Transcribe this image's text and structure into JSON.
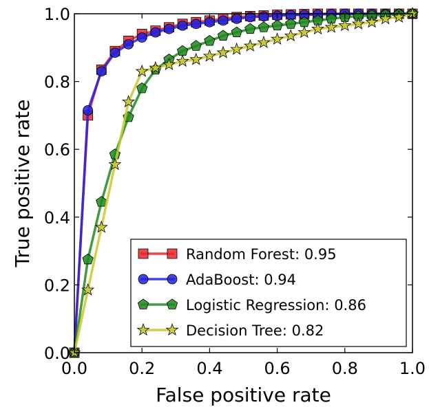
{
  "chart_data": {
    "type": "line",
    "title": "",
    "xlabel": "False positive rate",
    "ylabel": "True positive rate",
    "xlim": [
      0.0,
      1.0
    ],
    "ylim": [
      0.0,
      1.0
    ],
    "xticks": [
      "0.0",
      "0.2",
      "0.4",
      "0.6",
      "0.8",
      "1.0"
    ],
    "yticks": [
      "0.0",
      "0.2",
      "0.4",
      "0.6",
      "0.8",
      "1.0"
    ],
    "grid": false,
    "legend_position": "lower-right",
    "series": [
      {
        "name": "Random Forest: 0.95",
        "color": "#e8262b",
        "marker": "square",
        "x": [
          0.0,
          0.04,
          0.08,
          0.12,
          0.16,
          0.2,
          0.24,
          0.28,
          0.32,
          0.36,
          0.4,
          0.44,
          0.48,
          0.52,
          0.56,
          0.6,
          0.64,
          0.68,
          0.72,
          0.76,
          0.8,
          0.84,
          0.88,
          0.92,
          0.96,
          1.0
        ],
        "y": [
          0.0,
          0.7,
          0.835,
          0.89,
          0.92,
          0.94,
          0.95,
          0.96,
          0.97,
          0.975,
          0.98,
          0.985,
          0.99,
          0.993,
          0.995,
          0.997,
          0.998,
          0.999,
          1.0,
          1.0,
          1.0,
          1.0,
          1.0,
          1.0,
          1.0,
          1.0
        ]
      },
      {
        "name": "AdaBoost: 0.94",
        "color": "#2323e0",
        "marker": "circle",
        "x": [
          0.0,
          0.04,
          0.08,
          0.12,
          0.16,
          0.2,
          0.24,
          0.28,
          0.32,
          0.36,
          0.4,
          0.44,
          0.48,
          0.52,
          0.56,
          0.6,
          0.64,
          0.68,
          0.72,
          0.76,
          0.8,
          0.84,
          0.88,
          0.92,
          0.96,
          1.0
        ],
        "y": [
          0.0,
          0.715,
          0.83,
          0.885,
          0.91,
          0.93,
          0.945,
          0.955,
          0.965,
          0.97,
          0.975,
          0.98,
          0.985,
          0.99,
          0.992,
          0.994,
          0.996,
          0.997,
          0.998,
          0.999,
          1.0,
          1.0,
          1.0,
          1.0,
          1.0,
          1.0
        ]
      },
      {
        "name": "Logistic Regression: 0.86",
        "color": "#1e8a1e",
        "marker": "pentagon",
        "x": [
          0.0,
          0.04,
          0.08,
          0.12,
          0.16,
          0.2,
          0.24,
          0.28,
          0.32,
          0.36,
          0.4,
          0.44,
          0.48,
          0.52,
          0.56,
          0.6,
          0.64,
          0.68,
          0.72,
          0.76,
          0.8,
          0.84,
          0.88,
          0.92,
          0.96,
          1.0
        ],
        "y": [
          0.0,
          0.275,
          0.445,
          0.585,
          0.695,
          0.78,
          0.835,
          0.865,
          0.89,
          0.905,
          0.92,
          0.935,
          0.945,
          0.955,
          0.96,
          0.965,
          0.97,
          0.975,
          0.98,
          0.985,
          0.99,
          0.993,
          0.995,
          0.997,
          0.999,
          1.0
        ]
      },
      {
        "name": "Decision Tree: 0.82",
        "color": "#c8c82a",
        "marker": "star",
        "x": [
          0.0,
          0.04,
          0.08,
          0.12,
          0.16,
          0.2,
          0.24,
          0.28,
          0.32,
          0.36,
          0.4,
          0.44,
          0.48,
          0.52,
          0.56,
          0.6,
          0.64,
          0.68,
          0.72,
          0.76,
          0.8,
          0.84,
          0.88,
          0.92,
          0.96,
          1.0
        ],
        "y": [
          0.0,
          0.185,
          0.37,
          0.555,
          0.74,
          0.83,
          0.84,
          0.85,
          0.86,
          0.865,
          0.875,
          0.885,
          0.895,
          0.905,
          0.915,
          0.925,
          0.935,
          0.945,
          0.955,
          0.96,
          0.965,
          0.97,
          0.975,
          0.985,
          0.99,
          1.0
        ]
      }
    ]
  }
}
